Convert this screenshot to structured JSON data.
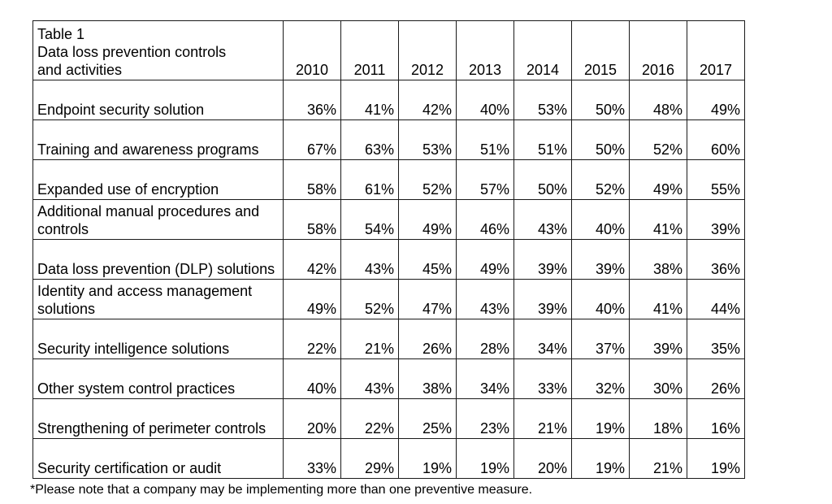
{
  "table": {
    "title_lines": [
      "Table 1",
      "Data loss prevention controls",
      "and activities"
    ],
    "years": [
      "2010",
      "2011",
      "2012",
      "2013",
      "2014",
      "2015",
      "2016",
      "2017"
    ],
    "rows": [
      {
        "label": "Endpoint security solution",
        "values": [
          "36%",
          "41%",
          "42%",
          "40%",
          "53%",
          "50%",
          "48%",
          "49%"
        ]
      },
      {
        "label": "Training and awareness programs",
        "values": [
          "67%",
          "63%",
          "53%",
          "51%",
          "51%",
          "50%",
          "52%",
          "60%"
        ]
      },
      {
        "label": "Expanded use of encryption",
        "values": [
          "58%",
          "61%",
          "52%",
          "57%",
          "50%",
          "52%",
          "49%",
          "55%"
        ]
      },
      {
        "label": "Additional manual procedures and controls",
        "values": [
          "58%",
          "54%",
          "49%",
          "46%",
          "43%",
          "40%",
          "41%",
          "39%"
        ]
      },
      {
        "label": "Data loss prevention (DLP) solutions",
        "values": [
          "42%",
          "43%",
          "45%",
          "49%",
          "39%",
          "39%",
          "38%",
          "36%"
        ]
      },
      {
        "label": "Identity and access management solutions",
        "values": [
          "49%",
          "52%",
          "47%",
          "43%",
          "39%",
          "40%",
          "41%",
          "44%"
        ]
      },
      {
        "label": "Security intelligence solutions",
        "values": [
          "22%",
          "21%",
          "26%",
          "28%",
          "34%",
          "37%",
          "39%",
          "35%"
        ]
      },
      {
        "label": "Other system control practices",
        "values": [
          "40%",
          "43%",
          "38%",
          "34%",
          "33%",
          "32%",
          "30%",
          "26%"
        ]
      },
      {
        "label": "Strengthening of perimeter controls",
        "values": [
          "20%",
          "22%",
          "25%",
          "23%",
          "21%",
          "19%",
          "18%",
          "16%"
        ]
      },
      {
        "label": "Security certification or audit",
        "values": [
          "33%",
          "29%",
          "19%",
          "19%",
          "20%",
          "19%",
          "21%",
          "19%"
        ]
      }
    ]
  },
  "footnote": "*Please note that a company may be implementing more than one preventive measure."
}
